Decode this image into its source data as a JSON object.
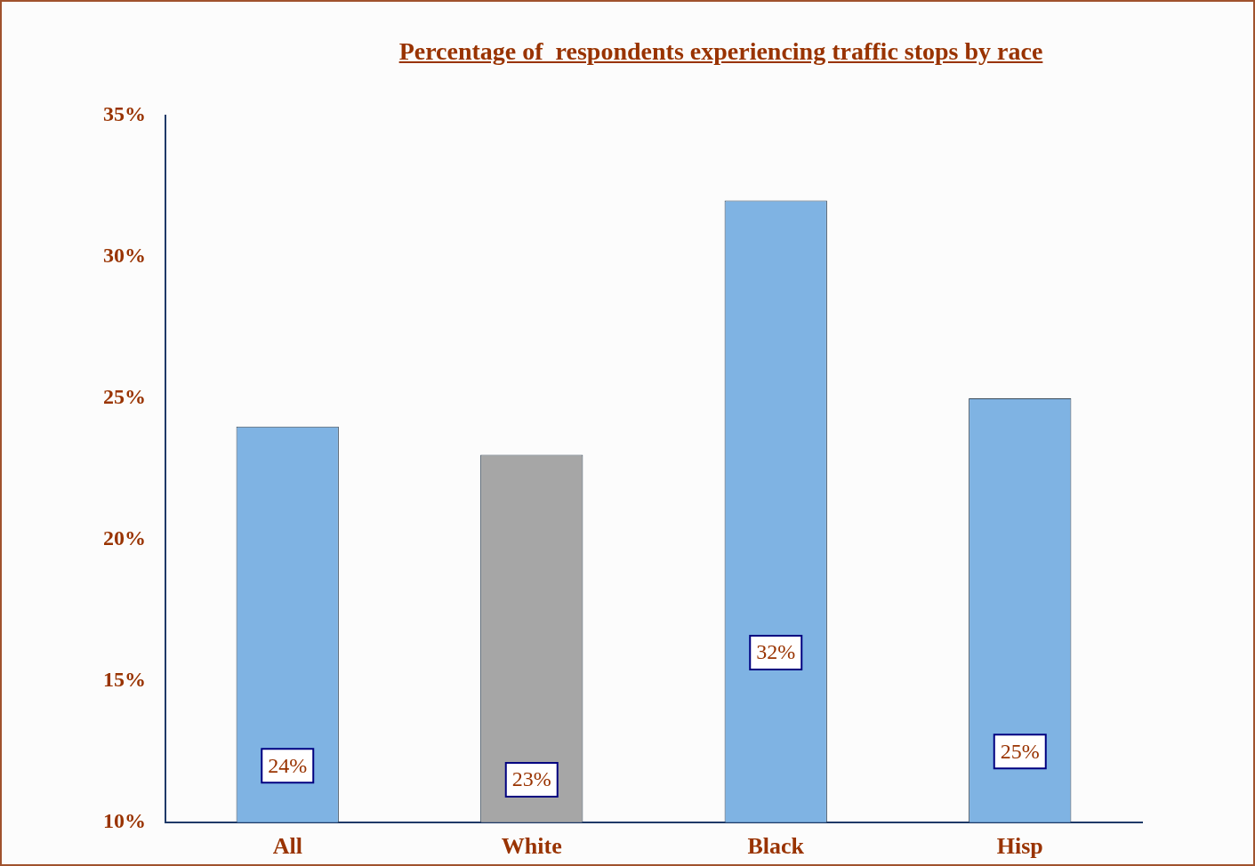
{
  "chart_data": {
    "type": "bar",
    "title": "Percentage of  respondents experiencing traffic stops by race",
    "categories": [
      "All",
      "White",
      "Black",
      "Hisp"
    ],
    "values": [
      24,
      23,
      32,
      25
    ],
    "colors": [
      "#7fb3e3",
      "#a6a6a6",
      "#7fb3e3",
      "#7fb3e3"
    ],
    "value_labels": [
      "24%",
      "23%",
      "32%",
      "25%"
    ],
    "ylim": [
      10,
      35
    ],
    "yticks": [
      {
        "value": 10,
        "label": "10%"
      },
      {
        "value": 15,
        "label": "15%"
      },
      {
        "value": 20,
        "label": "20%"
      },
      {
        "value": 25,
        "label": "25%"
      },
      {
        "value": 30,
        "label": "30%"
      },
      {
        "value": 35,
        "label": "35%"
      }
    ],
    "grid": false,
    "legend": false
  }
}
